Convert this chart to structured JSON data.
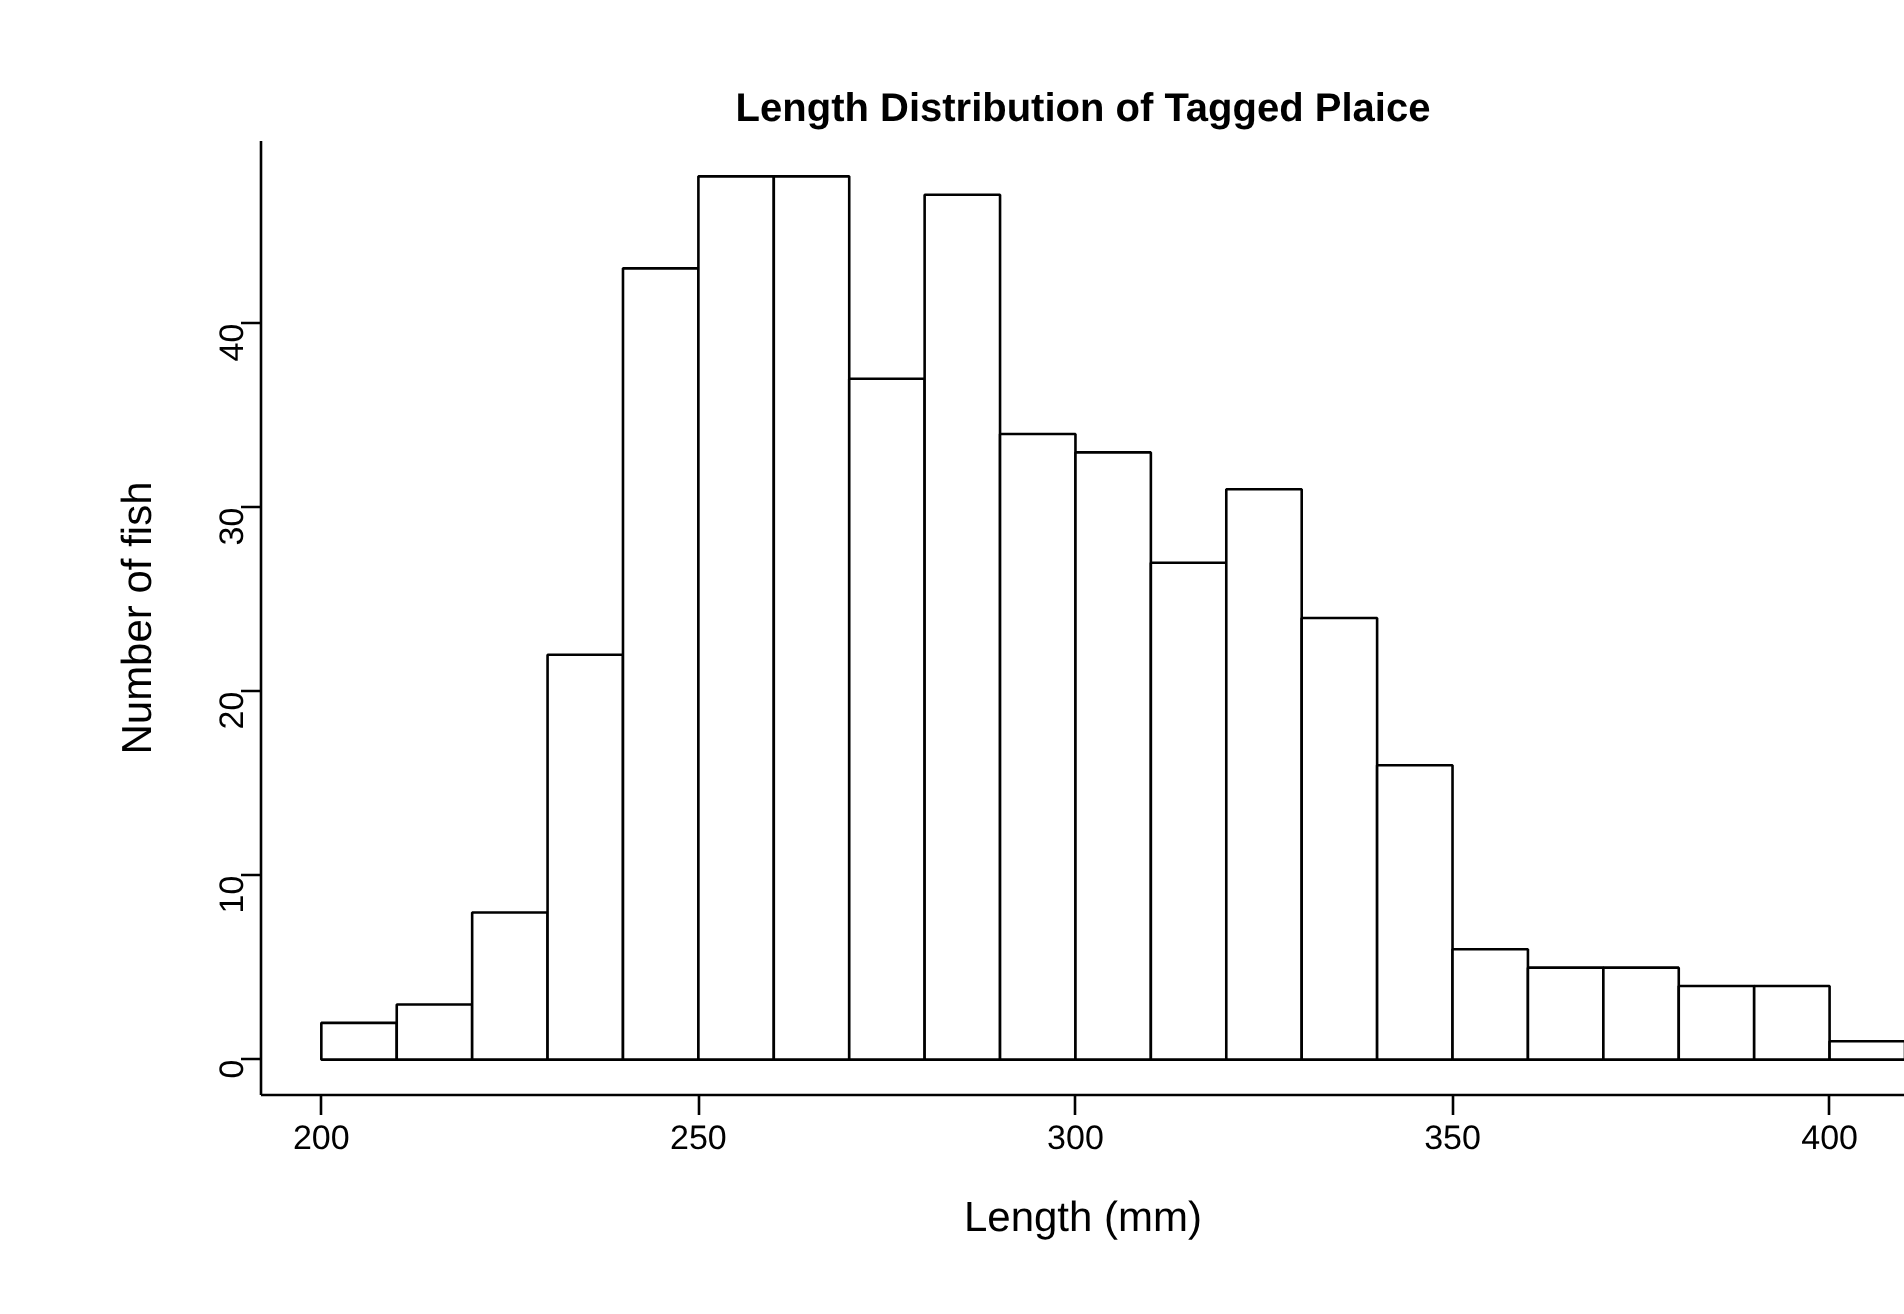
{
  "chart_data": {
    "type": "histogram",
    "title": "Length Distribution of Tagged Plaice",
    "xlabel": "Length (mm)",
    "ylabel": "Number of fish",
    "bins": [
      200,
      210,
      220,
      230,
      240,
      250,
      260,
      270,
      280,
      290,
      300,
      310,
      320,
      330,
      340,
      350,
      360,
      370,
      380,
      390,
      400,
      410
    ],
    "values": [
      2,
      3,
      8,
      22,
      43,
      48,
      48,
      37,
      47,
      34,
      33,
      27,
      31,
      24,
      16,
      6,
      5,
      5,
      4,
      4,
      1
    ],
    "color": "#ffffff",
    "xlim": [
      192,
      410
    ],
    "ylim": [
      -1.92,
      49.92
    ],
    "xticks": [
      200,
      250,
      300,
      350,
      400
    ],
    "yticks": [
      0,
      10,
      20,
      30,
      40
    ],
    "grid": false
  }
}
